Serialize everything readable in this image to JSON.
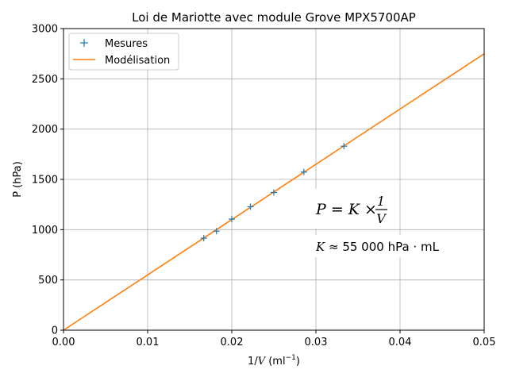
{
  "chart_data": {
    "type": "line",
    "title": "Loi de Mariotte avec module Grove MPX5700AP",
    "xlabel_pre": "1/",
    "xlabel_var": "V",
    "xlabel_post": " (ml",
    "xlabel_exp": "−1",
    "xlabel_close": ")",
    "ylabel": "P (hPa)",
    "xlim": [
      0,
      0.05
    ],
    "ylim": [
      0,
      3000
    ],
    "xticks": [
      0.0,
      0.01,
      0.02,
      0.03,
      0.04,
      0.05
    ],
    "xtick_labels": [
      "0.00",
      "0.01",
      "0.02",
      "0.03",
      "0.04",
      "0.05"
    ],
    "yticks": [
      0,
      500,
      1000,
      1500,
      2000,
      2500,
      3000
    ],
    "ytick_labels": [
      "0",
      "500",
      "1000",
      "1500",
      "2000",
      "2500",
      "3000"
    ],
    "grid": true,
    "legend_position": "upper-left",
    "series": [
      {
        "name": "Mesures",
        "marker": "+",
        "color": "#1f77b4",
        "x": [
          0.01667,
          0.01818,
          0.02,
          0.02222,
          0.025,
          0.02857,
          0.03333
        ],
        "y": [
          915,
          985,
          1105,
          1228,
          1370,
          1573,
          1830
        ]
      },
      {
        "name": "Modélisation",
        "color": "#ff7f0e",
        "x": [
          0,
          0.05
        ],
        "y": [
          0,
          2750
        ]
      }
    ],
    "annotations": {
      "formula_lhs": "P = K × ",
      "formula_num": "1",
      "formula_den": "V",
      "constant_var": "K",
      "constant_text": " ≈ 55 000 hPa · mL"
    }
  }
}
